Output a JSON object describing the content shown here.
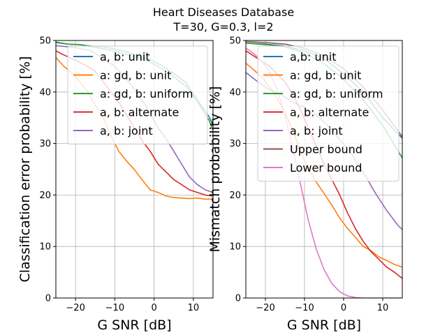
{
  "figure": {
    "title_line1": "Heart Diseases Database",
    "title_line2": "T=30, G=0.3, l=2"
  },
  "chart_data": [
    {
      "type": "line",
      "xlabel": "G SNR [dB]",
      "ylabel": "Classification error probability [%]",
      "xlim": [
        -25,
        15
      ],
      "ylim": [
        0,
        50
      ],
      "xticks": [
        -20,
        -10,
        0,
        10
      ],
      "xtick_labels": [
        "−20",
        "−10",
        "0",
        "10"
      ],
      "yticks": [
        0,
        10,
        20,
        30,
        40,
        50
      ],
      "ytick_labels": [
        "0",
        "10",
        "20",
        "30",
        "40",
        "50"
      ],
      "grid": true,
      "legend_position": "top-right",
      "series": [
        {
          "name": "a, b: unit",
          "color": "#1f77b4",
          "x": [
            -25,
            -22,
            -19,
            -16,
            -13,
            -10,
            -7,
            -4,
            -1,
            2,
            5,
            8,
            11,
            14,
            15
          ],
          "y": [
            49.6,
            49.3,
            49.2,
            48.9,
            48.8,
            48.3,
            47.8,
            46.9,
            46.3,
            45.1,
            43.6,
            41.9,
            38.5,
            35.2,
            33.5
          ]
        },
        {
          "name": "a: gd, b: unit",
          "color": "#ff7f0e",
          "x": [
            -25,
            -23,
            -21,
            -19,
            -17,
            -15,
            -13,
            -11,
            -9,
            -7,
            -5,
            -3,
            -1,
            1,
            3,
            5,
            7,
            9,
            11,
            13,
            15
          ],
          "y": [
            46.7,
            45.0,
            43.8,
            42.0,
            40.2,
            37.5,
            35.0,
            31.5,
            28.5,
            26.6,
            24.9,
            22.9,
            21.0,
            20.5,
            19.8,
            19.5,
            19.4,
            19.3,
            19.4,
            19.2,
            19.2
          ]
        },
        {
          "name": "a: gd, b: uniform",
          "color": "#2ca02c",
          "x": [
            -25,
            -22,
            -19,
            -16,
            -13,
            -10,
            -7,
            -4,
            -1,
            2,
            5,
            8,
            11,
            14,
            15
          ],
          "y": [
            49.7,
            49.3,
            49.2,
            48.8,
            48.4,
            47.9,
            47.3,
            46.6,
            45.8,
            44.5,
            43.0,
            41.2,
            38.2,
            34.5,
            32.5
          ]
        },
        {
          "name": "a, b: alternate",
          "color": "#d62728",
          "x": [
            -25,
            -23,
            -21,
            -19,
            -17,
            -15,
            -13,
            -11,
            -9,
            -7,
            -5,
            -3,
            -1,
            1,
            3,
            5,
            7,
            9,
            11,
            13,
            15
          ],
          "y": [
            48.0,
            47.2,
            46.5,
            45.8,
            45.0,
            44.0,
            42.0,
            40.0,
            38.0,
            35.5,
            33.0,
            30.5,
            28.5,
            26.0,
            24.5,
            23.0,
            22.0,
            21.0,
            20.5,
            20.0,
            19.8
          ]
        },
        {
          "name": "a, b: joint",
          "color": "#9467bd",
          "x": [
            -25,
            -22,
            -19,
            -16,
            -13,
            -10,
            -7,
            -4,
            -1,
            1,
            3,
            5,
            7,
            9,
            11,
            13,
            15
          ],
          "y": [
            49.0,
            48.8,
            48.5,
            48.0,
            46.5,
            45.0,
            42.5,
            39.5,
            36.0,
            33.0,
            31.0,
            28.5,
            26.0,
            23.5,
            22.0,
            21.0,
            20.5
          ]
        }
      ]
    },
    {
      "type": "line",
      "xlabel": "G SNR [dB]",
      "ylabel": "Mismatch probability [%]",
      "xlim": [
        -25,
        15
      ],
      "ylim": [
        0,
        50
      ],
      "xticks": [
        -20,
        -10,
        0,
        10
      ],
      "xtick_labels": [
        "−20",
        "−10",
        "0",
        "10"
      ],
      "yticks": [
        0,
        10,
        20,
        30,
        40,
        50
      ],
      "ytick_labels": [
        "0",
        "10",
        "20",
        "30",
        "40",
        "50"
      ],
      "grid": true,
      "legend_position": "top-right",
      "series": [
        {
          "name": "a,b: unit",
          "color": "#1f77b4",
          "x": [
            -25,
            -20,
            -15,
            -10,
            -5,
            0,
            5,
            10,
            15
          ],
          "y": [
            49.5,
            49.3,
            48.9,
            48.0,
            46.5,
            43.5,
            40.0,
            35.0,
            31.0
          ]
        },
        {
          "name": "a: gd, b: unit",
          "color": "#ff7f0e",
          "x": [
            -25,
            -23,
            -21,
            -19,
            -17,
            -15,
            -13,
            -11,
            -9,
            -7,
            -5,
            -3,
            -1,
            1,
            3,
            5,
            7,
            9,
            11,
            13,
            15
          ],
          "y": [
            45.6,
            44.3,
            43.0,
            41.0,
            38.8,
            36.0,
            32.5,
            28.5,
            25.0,
            22.5,
            20.3,
            18.0,
            15.5,
            13.5,
            11.8,
            10.0,
            9.2,
            8.0,
            7.3,
            6.5,
            6.0
          ]
        },
        {
          "name": "a: gd, b: uniform",
          "color": "#2ca02c",
          "x": [
            -25,
            -20,
            -15,
            -10,
            -5,
            0,
            5,
            10,
            15
          ],
          "y": [
            49.5,
            49.2,
            48.8,
            47.5,
            45.5,
            42.5,
            38.5,
            33.5,
            27.2
          ]
        },
        {
          "name": "a, b: alternate",
          "color": "#d62728",
          "x": [
            -25,
            -23,
            -21,
            -19,
            -17,
            -15,
            -13,
            -11,
            -9,
            -7,
            -5,
            -3,
            -1,
            1,
            3,
            5,
            7,
            9,
            11,
            13,
            15
          ],
          "y": [
            48.0,
            47.0,
            46.0,
            45.0,
            43.5,
            42.0,
            39.5,
            36.5,
            33.0,
            29.5,
            26.0,
            23.0,
            20.0,
            16.5,
            13.5,
            11.0,
            9.0,
            7.5,
            6.0,
            5.0,
            3.8
          ]
        },
        {
          "name": "a, b: joint",
          "color": "#9467bd",
          "x": [
            -25,
            -22,
            -19,
            -16,
            -13,
            -10,
            -7,
            -4,
            -1,
            2,
            5,
            8,
            11,
            14,
            15
          ],
          "y": [
            43.8,
            42.0,
            40.5,
            39.5,
            38.0,
            37.0,
            35.5,
            33.5,
            30.8,
            28.0,
            24.5,
            20.5,
            17.0,
            14.0,
            13.3
          ]
        },
        {
          "name": "Upper bound",
          "color": "#8c564b",
          "x": [
            -25,
            -20,
            -15,
            -10,
            -5,
            0,
            5,
            10,
            15
          ],
          "y": [
            49.8,
            49.6,
            49.3,
            48.5,
            47.0,
            44.5,
            41.0,
            36.5,
            31.3
          ]
        },
        {
          "name": "Lower bound",
          "color": "#e377c2",
          "x": [
            -25,
            -23,
            -21,
            -19,
            -17,
            -15,
            -13,
            -11,
            -9,
            -7,
            -5,
            -3,
            -1,
            1,
            3,
            5,
            7,
            9,
            11,
            13,
            15
          ],
          "y": [
            48.5,
            47.5,
            46.0,
            44.0,
            40.5,
            35.5,
            29.0,
            22.0,
            15.0,
            9.5,
            5.5,
            2.8,
            1.2,
            0.4,
            0.1,
            0.0,
            0.0,
            0.0,
            0.0,
            0.0,
            0.0
          ]
        }
      ]
    }
  ]
}
